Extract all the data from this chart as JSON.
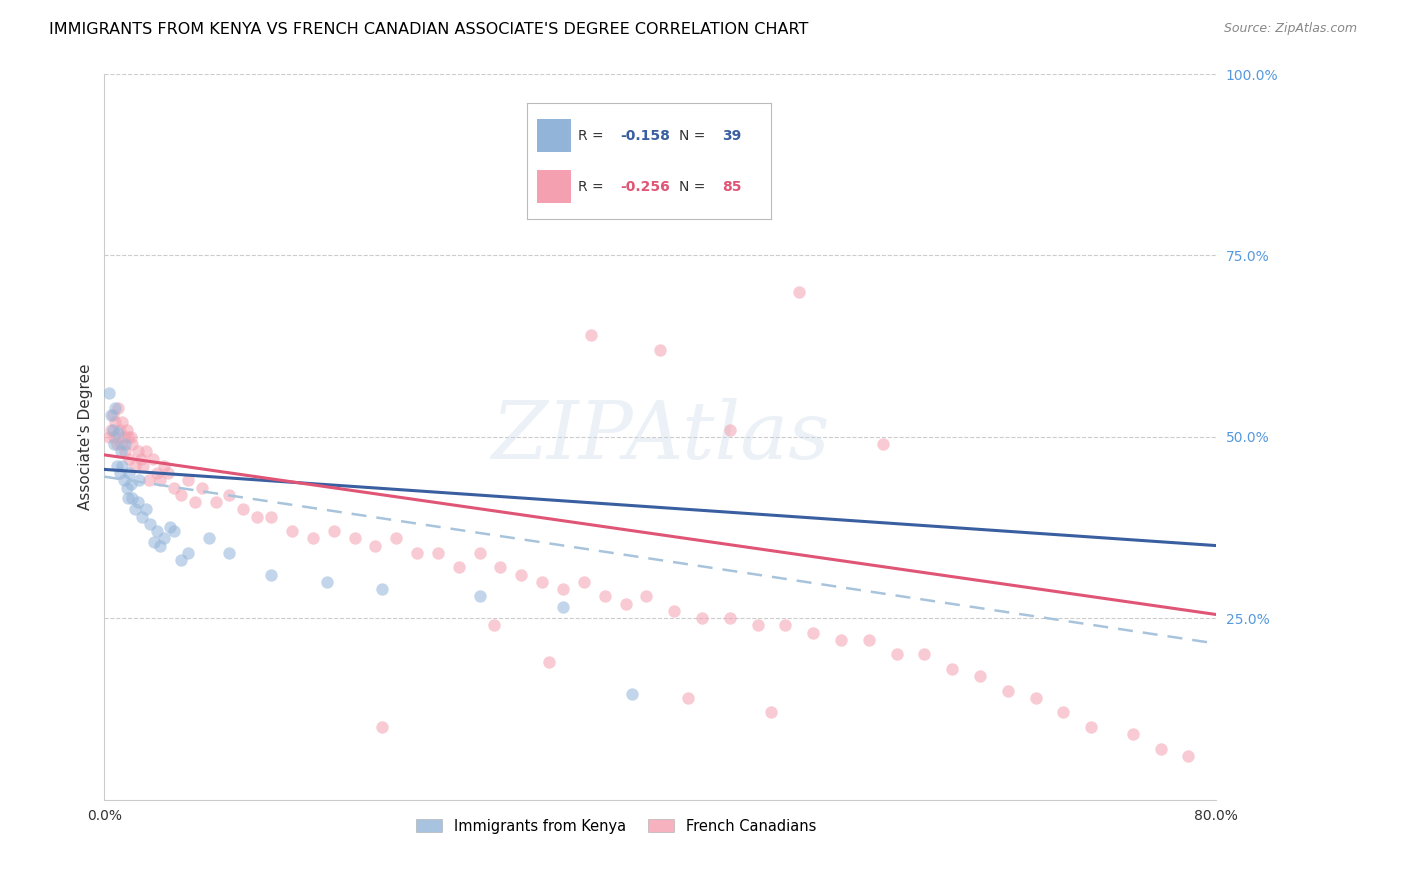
{
  "title": "IMMIGRANTS FROM KENYA VS FRENCH CANADIAN ASSOCIATE'S DEGREE CORRELATION CHART",
  "source": "Source: ZipAtlas.com",
  "ylabel": "Associate's Degree",
  "xlim": [
    0.0,
    0.8
  ],
  "ylim": [
    0.0,
    1.0
  ],
  "y_ticks_right": [
    0.0,
    0.25,
    0.5,
    0.75,
    1.0
  ],
  "y_tick_labels_right": [
    "",
    "25.0%",
    "50.0%",
    "75.0%",
    "100.0%"
  ],
  "kenya_color": "#92B4D9",
  "french_color": "#F4A0B0",
  "kenya_line_color": "#3A5FA0",
  "french_line_color": "#E05575",
  "dashed_line_color": "#A8C4DC",
  "kenya_R": -0.158,
  "kenya_N": 39,
  "french_R": -0.256,
  "french_N": 85,
  "watermark": "ZIPAtlas",
  "kenya_trend": [
    0.455,
    0.35
  ],
  "french_trend": [
    0.475,
    0.255
  ],
  "dash_trend": [
    0.445,
    0.215
  ],
  "kenya_x": [
    0.003,
    0.005,
    0.006,
    0.007,
    0.008,
    0.009,
    0.01,
    0.011,
    0.012,
    0.013,
    0.014,
    0.015,
    0.016,
    0.017,
    0.018,
    0.019,
    0.02,
    0.022,
    0.024,
    0.025,
    0.027,
    0.03,
    0.033,
    0.036,
    0.038,
    0.04,
    0.043,
    0.047,
    0.05,
    0.055,
    0.06,
    0.075,
    0.09,
    0.12,
    0.16,
    0.2,
    0.27,
    0.33,
    0.38
  ],
  "kenya_y": [
    0.56,
    0.53,
    0.51,
    0.49,
    0.54,
    0.46,
    0.505,
    0.45,
    0.48,
    0.46,
    0.44,
    0.49,
    0.43,
    0.415,
    0.45,
    0.435,
    0.415,
    0.4,
    0.41,
    0.44,
    0.39,
    0.4,
    0.38,
    0.355,
    0.37,
    0.35,
    0.36,
    0.375,
    0.37,
    0.33,
    0.34,
    0.36,
    0.34,
    0.31,
    0.3,
    0.29,
    0.28,
    0.265,
    0.145
  ],
  "french_x": [
    0.003,
    0.005,
    0.006,
    0.007,
    0.008,
    0.009,
    0.01,
    0.011,
    0.012,
    0.013,
    0.014,
    0.015,
    0.016,
    0.017,
    0.018,
    0.019,
    0.02,
    0.022,
    0.024,
    0.026,
    0.028,
    0.03,
    0.032,
    0.035,
    0.038,
    0.04,
    0.043,
    0.046,
    0.05,
    0.055,
    0.06,
    0.065,
    0.07,
    0.08,
    0.09,
    0.1,
    0.11,
    0.12,
    0.135,
    0.15,
    0.165,
    0.18,
    0.195,
    0.21,
    0.225,
    0.24,
    0.255,
    0.27,
    0.285,
    0.3,
    0.315,
    0.33,
    0.345,
    0.36,
    0.375,
    0.39,
    0.41,
    0.43,
    0.45,
    0.47,
    0.49,
    0.51,
    0.53,
    0.55,
    0.57,
    0.59,
    0.61,
    0.63,
    0.65,
    0.67,
    0.69,
    0.71,
    0.74,
    0.76,
    0.78,
    0.5,
    0.4,
    0.35,
    0.45,
    0.28,
    0.2,
    0.32,
    0.42,
    0.48,
    0.56
  ],
  "french_y": [
    0.5,
    0.51,
    0.53,
    0.5,
    0.52,
    0.49,
    0.54,
    0.51,
    0.49,
    0.52,
    0.5,
    0.48,
    0.51,
    0.5,
    0.47,
    0.5,
    0.49,
    0.46,
    0.48,
    0.47,
    0.46,
    0.48,
    0.44,
    0.47,
    0.45,
    0.44,
    0.46,
    0.45,
    0.43,
    0.42,
    0.44,
    0.41,
    0.43,
    0.41,
    0.42,
    0.4,
    0.39,
    0.39,
    0.37,
    0.36,
    0.37,
    0.36,
    0.35,
    0.36,
    0.34,
    0.34,
    0.32,
    0.34,
    0.32,
    0.31,
    0.3,
    0.29,
    0.3,
    0.28,
    0.27,
    0.28,
    0.26,
    0.25,
    0.25,
    0.24,
    0.24,
    0.23,
    0.22,
    0.22,
    0.2,
    0.2,
    0.18,
    0.17,
    0.15,
    0.14,
    0.12,
    0.1,
    0.09,
    0.07,
    0.06,
    0.7,
    0.62,
    0.64,
    0.51,
    0.24,
    0.1,
    0.19,
    0.14,
    0.12,
    0.49
  ],
  "title_fontsize": 11.5,
  "axis_label_fontsize": 11,
  "tick_fontsize": 10,
  "right_tick_color": "#5599DD",
  "marker_size": 80,
  "marker_alpha": 0.55
}
